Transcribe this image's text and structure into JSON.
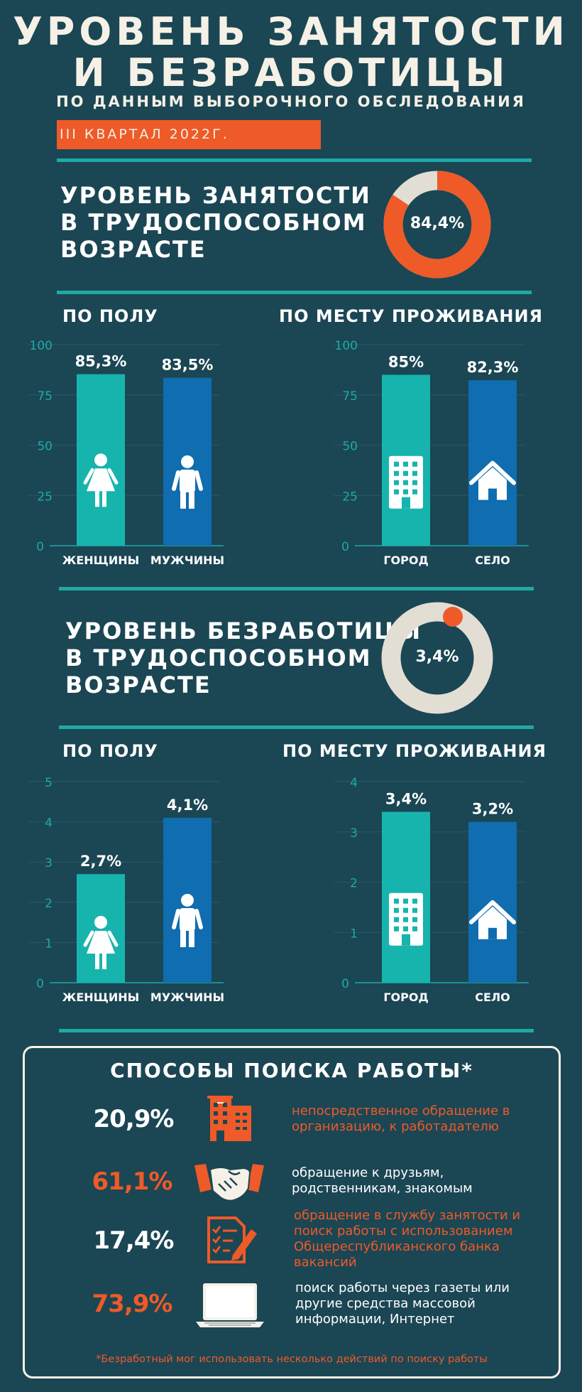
{
  "header": {
    "title_line1": "УРОВЕНЬ ЗАНЯТОСТИ",
    "title_line2": "И БЕЗРАБОТИЦЫ",
    "subtitle": "ПО ДАННЫМ ВЫБОРОЧНОГО ОБСЛЕДОВАНИЯ",
    "quarter": "III КВАРТАЛ 2022Г."
  },
  "employment": {
    "heading_line1": "УРОВЕНЬ ЗАНЯТОСТИ",
    "heading_line2": "В ТРУДОСПОСОБНОМ",
    "heading_line3": "ВОЗРАСТЕ",
    "value_label": "84,4%",
    "value": 84.4,
    "by_sex_heading": "ПО ПОЛУ",
    "by_residence_heading": "ПО МЕСТУ ПРОЖИВАНИЯ"
  },
  "unemployment": {
    "heading_line1": "УРОВЕНЬ БЕЗРАБОТИЦЫ",
    "heading_line2": "В ТРУДОСПОСОБНОМ",
    "heading_line3": "ВОЗРАСТЕ",
    "value_label": "3,4%",
    "value": 3.4,
    "by_sex_heading": "ПО ПОЛУ",
    "by_residence_heading": "ПО МЕСТУ ПРОЖИВАНИЯ"
  },
  "chart_data": [
    {
      "type": "donut",
      "id": "employment-total",
      "values": [
        84.4
      ],
      "labels": [
        "84,4%"
      ]
    },
    {
      "type": "bar",
      "id": "employment-by-sex",
      "title": "ПО ПОЛУ",
      "categories": [
        "ЖЕНЩИНЫ",
        "МУЖЧИНЫ"
      ],
      "values": [
        85.3,
        83.5
      ],
      "labels": [
        "85,3%",
        "83,5%"
      ],
      "icons": [
        "woman-icon",
        "man-icon"
      ],
      "ylim": [
        0,
        100
      ],
      "yticks": [
        "0",
        "25",
        "50",
        "75",
        "100"
      ]
    },
    {
      "type": "bar",
      "id": "employment-by-residence",
      "title": "ПО МЕСТУ ПРОЖИВАНИЯ",
      "categories": [
        "ГОРОД",
        "СЕЛО"
      ],
      "values": [
        85,
        82.3
      ],
      "labels": [
        "85%",
        "82,3%"
      ],
      "icons": [
        "building-icon",
        "house-icon"
      ],
      "ylim": [
        0,
        100
      ],
      "yticks": [
        "0",
        "25",
        "50",
        "75",
        "100"
      ]
    },
    {
      "type": "donut",
      "id": "unemployment-total",
      "values": [
        3.4
      ],
      "labels": [
        "3,4%"
      ]
    },
    {
      "type": "bar",
      "id": "unemployment-by-sex",
      "title": "ПО ПОЛУ",
      "categories": [
        "ЖЕНЩИНЫ",
        "МУЖЧИНЫ"
      ],
      "values": [
        2.7,
        4.1
      ],
      "labels": [
        "2,7%",
        "4,1%"
      ],
      "icons": [
        "woman-icon",
        "man-icon"
      ],
      "ylim": [
        0,
        5
      ],
      "yticks": [
        "0",
        "1",
        "2",
        "3",
        "4",
        "5"
      ]
    },
    {
      "type": "bar",
      "id": "unemployment-by-residence",
      "title": "ПО МЕСТУ ПРОЖИВАНИЯ",
      "categories": [
        "ГОРОД",
        "СЕЛО"
      ],
      "values": [
        3.4,
        3.2
      ],
      "labels": [
        "3,4%",
        "3,2%"
      ],
      "icons": [
        "building-icon",
        "house-icon"
      ],
      "ylim": [
        0,
        4
      ],
      "yticks": [
        "0",
        "1",
        "2",
        "3",
        "4"
      ]
    }
  ],
  "job_search": {
    "title": "СПОСОБЫ ПОИСКА РАБОТЫ*",
    "methods": [
      {
        "pct": "20,9%",
        "icon": "office-building-icon",
        "lines": [
          "непосредственное обращение в",
          "организацию, к работадателю"
        ],
        "pct_color": "#ffffff",
        "text_color": "#ee5a28"
      },
      {
        "pct": "61,1%",
        "icon": "handshake-icon",
        "lines": [
          "обращение к друзьям,",
          "родственникам, знакомым"
        ],
        "pct_color": "#ee5a28",
        "text_color": "#ffffff"
      },
      {
        "pct": "17,4%",
        "icon": "document-pen-icon",
        "lines": [
          "обращение в службу занятости и",
          "поиск работы с использованием",
          "Общереспубликанского банка",
          "вакансий"
        ],
        "pct_color": "#ffffff",
        "text_color": "#ee5a28"
      },
      {
        "pct": "73,9%",
        "icon": "laptop-icon",
        "lines": [
          "поиск работы через газеты или",
          "другие средства массовой",
          "информации, Интернет"
        ],
        "pct_color": "#ee5a28",
        "text_color": "#ffffff"
      }
    ],
    "footnote": "*Безработный мог использовать несколько действий по поиску работы"
  },
  "colors": {
    "background": "#1b4654",
    "teal": "#17b4ad",
    "blue": "#0f6db0",
    "orange": "#ee5a28",
    "cream": "#e2ded4",
    "divider": "#1ea9a6",
    "axis": "#1ea9a6"
  }
}
